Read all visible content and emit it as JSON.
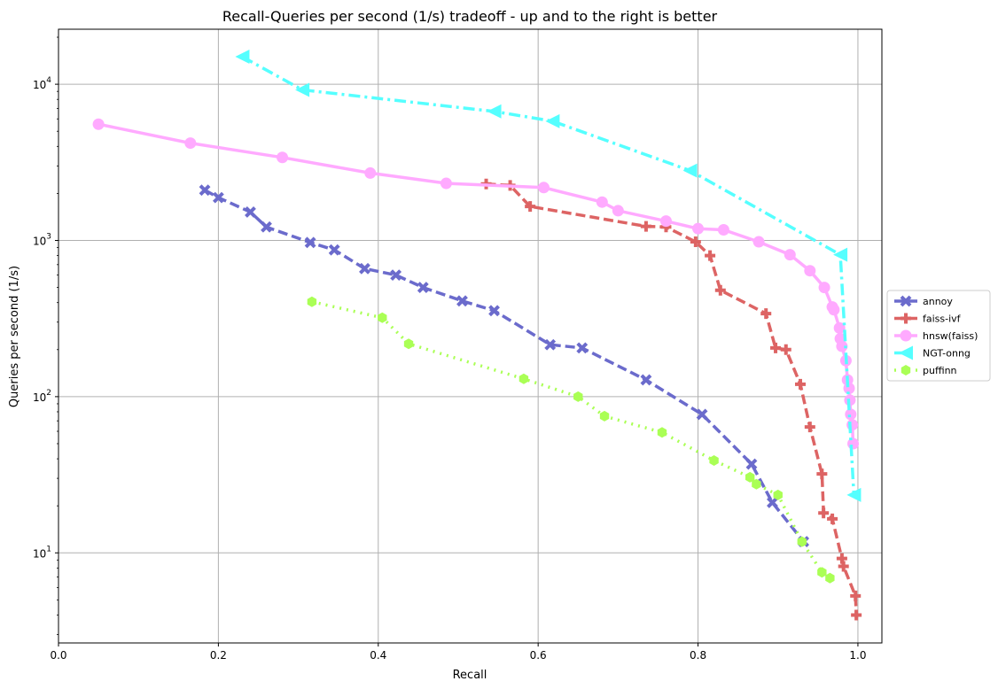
{
  "chart_data": {
    "type": "line",
    "title": "Recall-Queries per second (1/s) tradeoff - up and to the right is better",
    "xlabel": "Recall",
    "ylabel": "Queries per second (1/s)",
    "xlim": [
      0.0,
      1.03
    ],
    "ylim": [
      2.65,
      22500
    ],
    "yscale": "log",
    "grid": true,
    "legend_position": "right-outside",
    "x_ticks": [
      {
        "value": 0.0,
        "label": "0.0"
      },
      {
        "value": 0.2,
        "label": "0.2"
      },
      {
        "value": 0.4,
        "label": "0.4"
      },
      {
        "value": 0.6,
        "label": "0.6"
      },
      {
        "value": 0.8,
        "label": "0.8"
      },
      {
        "value": 1.0,
        "label": "1.0"
      }
    ],
    "y_ticks": [
      {
        "value": 10,
        "base": "10",
        "exp": "1"
      },
      {
        "value": 100,
        "base": "10",
        "exp": "2"
      },
      {
        "value": 1000,
        "base": "10",
        "exp": "3"
      },
      {
        "value": 10000,
        "base": "10",
        "exp": "4"
      }
    ],
    "series": [
      {
        "name": "annoy",
        "color": "#6b6bcc",
        "dash": "dashed",
        "marker": "x",
        "points": [
          [
            0.183,
            2100
          ],
          [
            0.2,
            1880
          ],
          [
            0.24,
            1520
          ],
          [
            0.26,
            1220
          ],
          [
            0.315,
            970
          ],
          [
            0.345,
            870
          ],
          [
            0.383,
            660
          ],
          [
            0.422,
            600
          ],
          [
            0.456,
            500
          ],
          [
            0.505,
            410
          ],
          [
            0.545,
            355
          ],
          [
            0.615,
            215
          ],
          [
            0.655,
            205
          ],
          [
            0.735,
            128
          ],
          [
            0.805,
            77
          ],
          [
            0.867,
            37
          ],
          [
            0.893,
            21
          ],
          [
            0.932,
            11.8
          ]
        ]
      },
      {
        "name": "faiss-ivf",
        "color": "#dd6464",
        "dash": "dashed",
        "marker": "plus",
        "points": [
          [
            0.535,
            2300
          ],
          [
            0.565,
            2250
          ],
          [
            0.59,
            1650
          ],
          [
            0.735,
            1230
          ],
          [
            0.76,
            1220
          ],
          [
            0.797,
            980
          ],
          [
            0.815,
            800
          ],
          [
            0.828,
            480
          ],
          [
            0.885,
            340
          ],
          [
            0.897,
            205
          ],
          [
            0.91,
            200
          ],
          [
            0.928,
            120
          ],
          [
            0.94,
            64
          ],
          [
            0.955,
            32
          ],
          [
            0.957,
            18
          ],
          [
            0.968,
            16.5
          ],
          [
            0.98,
            9.2
          ],
          [
            0.982,
            8.2
          ],
          [
            0.997,
            5.3
          ],
          [
            0.998,
            4.0
          ]
        ]
      },
      {
        "name": "hnsw(faiss)",
        "color": "#ffaaff",
        "dash": "solid",
        "marker": "circle",
        "points": [
          [
            0.05,
            5550
          ],
          [
            0.165,
            4200
          ],
          [
            0.28,
            3400
          ],
          [
            0.39,
            2700
          ],
          [
            0.485,
            2320
          ],
          [
            0.607,
            2180
          ],
          [
            0.68,
            1760
          ],
          [
            0.7,
            1550
          ],
          [
            0.76,
            1330
          ],
          [
            0.8,
            1190
          ],
          [
            0.832,
            1170
          ],
          [
            0.876,
            980
          ],
          [
            0.915,
            810
          ],
          [
            0.94,
            640
          ],
          [
            0.958,
            500
          ],
          [
            0.968,
            375
          ],
          [
            0.97,
            360
          ],
          [
            0.977,
            275
          ],
          [
            0.978,
            235
          ],
          [
            0.98,
            210
          ],
          [
            0.985,
            170
          ],
          [
            0.987,
            128
          ],
          [
            0.989,
            113
          ],
          [
            0.99,
            95
          ],
          [
            0.991,
            77
          ],
          [
            0.993,
            66
          ],
          [
            0.994,
            50
          ]
        ]
      },
      {
        "name": "NGT-onng",
        "color": "#55ffff",
        "dash": "dashdot",
        "marker": "triangle-left",
        "points": [
          [
            0.23,
            15000
          ],
          [
            0.305,
            9200
          ],
          [
            0.545,
            6700
          ],
          [
            0.618,
            5800
          ],
          [
            0.79,
            2800
          ],
          [
            0.978,
            810
          ],
          [
            0.995,
            23.5
          ]
        ]
      },
      {
        "name": "puffinn",
        "color": "#aaff55",
        "dash": "dotted",
        "marker": "hexagon",
        "points": [
          [
            0.317,
            405
          ],
          [
            0.405,
            320
          ],
          [
            0.438,
            218
          ],
          [
            0.582,
            130
          ],
          [
            0.65,
            100
          ],
          [
            0.683,
            75
          ],
          [
            0.755,
            59
          ],
          [
            0.82,
            39
          ],
          [
            0.865,
            30.5
          ],
          [
            0.873,
            27.5
          ],
          [
            0.9,
            23.5
          ],
          [
            0.93,
            11.8
          ],
          [
            0.955,
            7.5
          ],
          [
            0.965,
            6.9
          ]
        ]
      }
    ]
  }
}
